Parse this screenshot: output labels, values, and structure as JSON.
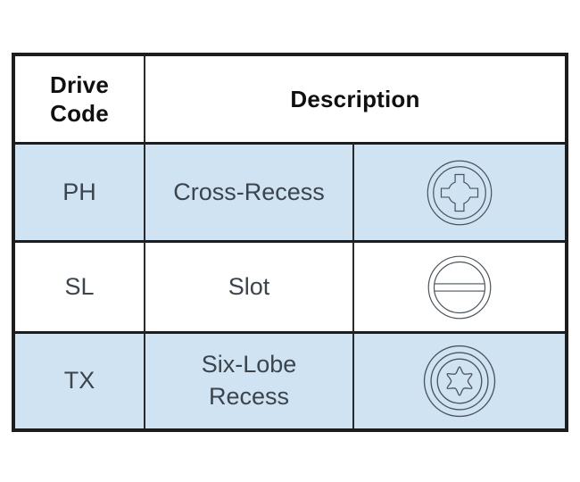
{
  "table": {
    "header": {
      "drive_code": "Drive Code",
      "description": "Description"
    },
    "rows": [
      {
        "code": "PH",
        "description": "Cross-Recess",
        "icon": "phillips-cross-recess-icon",
        "highlighted": true
      },
      {
        "code": "SL",
        "description": "Slot",
        "icon": "slot-drive-icon",
        "highlighted": false
      },
      {
        "code": "TX",
        "description": "Six-Lobe Recess",
        "icon": "six-lobe-recess-icon",
        "highlighted": true
      }
    ],
    "colors": {
      "highlight_row_bg": "#cfe3f2",
      "plain_row_bg": "#ffffff",
      "border": "#1d1d1d",
      "header_text": "#101010",
      "body_text": "#3c444c",
      "icon_stroke": "#4b545c"
    }
  }
}
